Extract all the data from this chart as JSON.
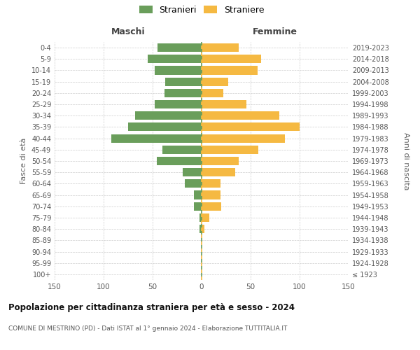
{
  "age_groups": [
    "100+",
    "95-99",
    "90-94",
    "85-89",
    "80-84",
    "75-79",
    "70-74",
    "65-69",
    "60-64",
    "55-59",
    "50-54",
    "45-49",
    "40-44",
    "35-39",
    "30-34",
    "25-29",
    "20-24",
    "15-19",
    "10-14",
    "5-9",
    "0-4"
  ],
  "birth_years": [
    "≤ 1923",
    "1924-1928",
    "1929-1933",
    "1934-1938",
    "1939-1943",
    "1944-1948",
    "1949-1953",
    "1954-1958",
    "1959-1963",
    "1964-1968",
    "1969-1973",
    "1974-1978",
    "1979-1983",
    "1984-1988",
    "1989-1993",
    "1994-1998",
    "1999-2003",
    "2004-2008",
    "2009-2013",
    "2014-2018",
    "2019-2023"
  ],
  "maschi": [
    0,
    0,
    0,
    0,
    2,
    2,
    8,
    8,
    17,
    19,
    46,
    40,
    92,
    75,
    68,
    48,
    38,
    37,
    48,
    55,
    45
  ],
  "femmine": [
    0,
    0,
    0,
    0,
    3,
    8,
    20,
    19,
    19,
    34,
    38,
    58,
    85,
    100,
    79,
    46,
    22,
    27,
    57,
    61,
    38
  ],
  "male_color": "#6a9e5b",
  "female_color": "#f5b942",
  "grid_color": "#cccccc",
  "xlim": 150,
  "title": "Popolazione per cittadinanza straniera per età e sesso - 2024",
  "subtitle": "COMUNE DI MESTRINO (PD) - Dati ISTAT al 1° gennaio 2024 - Elaborazione TUTTITALIA.IT",
  "col_header_left": "Maschi",
  "col_header_right": "Femmine",
  "ylabel_left": "Fasce di età",
  "ylabel_right": "Anni di nascita",
  "legend_stranieri": "Stranieri",
  "legend_straniere": "Straniere",
  "bar_height": 0.75
}
